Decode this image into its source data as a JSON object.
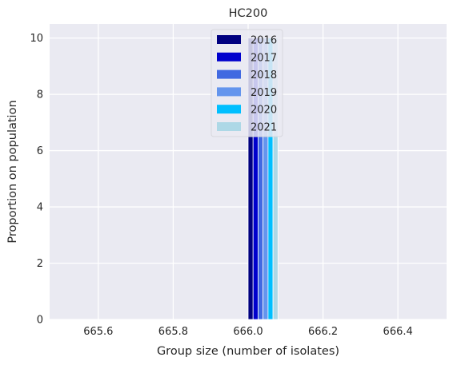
{
  "chart_data": {
    "type": "bar",
    "title": "HC200",
    "xlabel": "Group size (number of isolates)",
    "ylabel": "Proportion on population",
    "xlim": [
      665.47,
      666.53
    ],
    "ylim": [
      0,
      10.5
    ],
    "xticks": [
      "665.6",
      "665.8",
      "666.0",
      "666.2",
      "666.4"
    ],
    "xtick_values": [
      665.6,
      665.8,
      666.0,
      666.2,
      666.4
    ],
    "yticks": [
      "0",
      "2",
      "4",
      "6",
      "8",
      "10"
    ],
    "ytick_values": [
      0,
      2,
      4,
      6,
      8,
      10
    ],
    "grid": true,
    "legend_position": "top-center",
    "category": 666,
    "series": [
      {
        "name": "2016",
        "value": 10,
        "color": "#000080"
      },
      {
        "name": "2017",
        "value": 10,
        "color": "#0000cd"
      },
      {
        "name": "2018",
        "value": 10,
        "color": "#4169e1"
      },
      {
        "name": "2019",
        "value": 10,
        "color": "#6495ed"
      },
      {
        "name": "2020",
        "value": 10,
        "color": "#00bfff"
      },
      {
        "name": "2021",
        "value": 10,
        "color": "#add8e6"
      }
    ]
  }
}
